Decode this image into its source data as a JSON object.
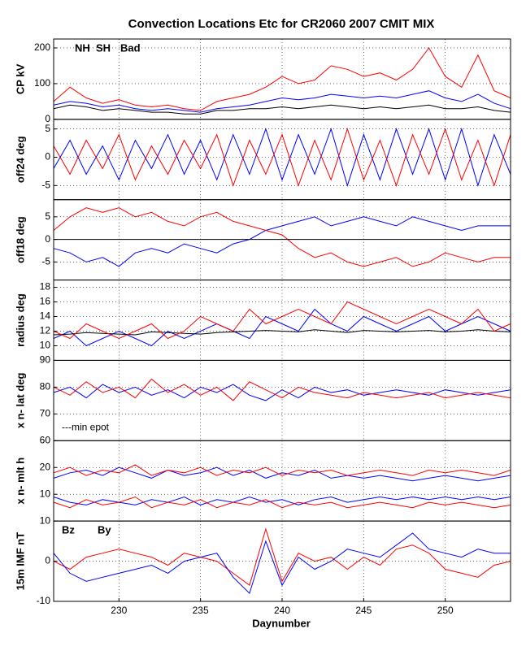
{
  "chart_data": {
    "type": "line",
    "title": "Convection Locations Etc for CR2060 2007 CMIT MIX",
    "xlabel": "Daynumber",
    "x": [
      226,
      227,
      228,
      229,
      230,
      231,
      232,
      233,
      234,
      235,
      236,
      237,
      238,
      239,
      240,
      241,
      242,
      243,
      244,
      245,
      246,
      247,
      248,
      249,
      250,
      251,
      252,
      253,
      254
    ],
    "xlim": [
      226,
      254
    ],
    "xticks": [
      230,
      235,
      240,
      245,
      250
    ],
    "grid": true,
    "panels": [
      {
        "ylabel": "CP kV",
        "ylim": [
          0,
          225
        ],
        "yticks": [
          0,
          100,
          200
        ],
        "series": [
          {
            "name": "NH",
            "color": "#ff0000",
            "values": [
              50,
              90,
              60,
              45,
              55,
              40,
              35,
              40,
              30,
              25,
              50,
              60,
              70,
              90,
              120,
              100,
              110,
              150,
              140,
              120,
              130,
              110,
              140,
              200,
              120,
              90,
              180,
              80,
              60
            ]
          },
          {
            "name": "SH",
            "color": "#0000ff",
            "values": [
              40,
              50,
              45,
              35,
              40,
              30,
              25,
              30,
              25,
              20,
              30,
              35,
              40,
              50,
              60,
              55,
              60,
              70,
              65,
              60,
              65,
              60,
              70,
              80,
              60,
              50,
              70,
              45,
              30
            ]
          },
          {
            "name": "Bad",
            "color": "#000000",
            "values": [
              30,
              40,
              35,
              25,
              30,
              25,
              20,
              20,
              15,
              15,
              25,
              25,
              30,
              30,
              35,
              30,
              35,
              40,
              35,
              30,
              35,
              30,
              35,
              40,
              30,
              30,
              35,
              25,
              20
            ]
          }
        ]
      },
      {
        "ylabel": "off24 deg",
        "ylim": [
          -7.5,
          6.7
        ],
        "yticks": [
          -5,
          0,
          5
        ],
        "series": [
          {
            "color": "#0000ff",
            "values": [
              -2,
              3,
              -3,
              2,
              -4,
              3,
              -2,
              4,
              -3,
              3,
              -4,
              4,
              -3,
              5,
              -4,
              4,
              -3,
              5,
              -5,
              4,
              -4,
              5,
              -3,
              5,
              -4,
              5,
              -5,
              4,
              -3
            ]
          },
          {
            "color": "#ff0000",
            "values": [
              2,
              -3,
              3,
              -2,
              4,
              -4,
              2,
              -3,
              3,
              -2,
              4,
              -5,
              3,
              -3,
              4,
              -5,
              3,
              -4,
              5,
              -4,
              3,
              -5,
              4,
              -3,
              5,
              -4,
              3,
              -5,
              4
            ]
          }
        ]
      },
      {
        "ylabel": "off18 deg",
        "ylim": [
          -9,
          8.8
        ],
        "yticks": [
          -5,
          0,
          5
        ],
        "series": [
          {
            "color": "#0000ff",
            "values": [
              -2,
              -3,
              -5,
              -4,
              -6,
              -3,
              -2,
              -3,
              -1,
              -2,
              -3,
              -1,
              0,
              2,
              3,
              4,
              5,
              3,
              4,
              5,
              4,
              3,
              5,
              4,
              3,
              2,
              3,
              3,
              3
            ]
          },
          {
            "color": "#ff0000",
            "values": [
              2,
              5,
              7,
              6,
              7,
              5,
              6,
              4,
              3,
              5,
              6,
              4,
              3,
              2,
              1,
              -2,
              -4,
              -3,
              -5,
              -6,
              -5,
              -4,
              -6,
              -5,
              -3,
              -4,
              -5,
              -4,
              -4
            ]
          },
          {
            "color": "#000000",
            "values": [
              0,
              0,
              0,
              0,
              0,
              0,
              0,
              0,
              0,
              0,
              0,
              0,
              0,
              0,
              0,
              0,
              0,
              0,
              0,
              0,
              0,
              0,
              0,
              0,
              0,
              0,
              0,
              0,
              0
            ]
          }
        ]
      },
      {
        "ylabel": "radius deg",
        "ylim": [
          8,
          19
        ],
        "yticks": [
          10,
          12,
          14,
          16,
          18
        ],
        "series": [
          {
            "color": "#0000ff",
            "values": [
              11,
              12,
              10,
              11,
              12,
              11,
              10,
              12,
              11,
              12,
              13,
              12,
              11,
              14,
              13,
              12,
              15,
              13,
              12,
              14,
              13,
              12,
              13,
              14,
              12,
              13,
              14,
              13,
              12
            ]
          },
          {
            "color": "#000000",
            "values": [
              11.5,
              11.6,
              11.8,
              11.7,
              11.6,
              11.5,
              11.9,
              11.8,
              11.7,
              11.6,
              11.8,
              11.9,
              12,
              12.1,
              12,
              11.9,
              12.2,
              12,
              11.8,
              12.1,
              12,
              11.9,
              12,
              12.1,
              11.9,
              12,
              12.2,
              12,
              11.9
            ]
          },
          {
            "color": "#ff0000",
            "values": [
              12,
              11,
              13,
              12,
              11,
              12,
              13,
              11,
              12,
              14,
              13,
              12,
              15,
              13,
              14,
              15,
              14,
              13,
              16,
              15,
              14,
              13,
              14,
              15,
              14,
              13,
              15,
              12,
              13
            ]
          }
        ]
      },
      {
        "ylabel": "x n- lat deg",
        "ylim": [
          60,
          90
        ],
        "yticks": [
          60,
          70,
          80,
          90
        ],
        "annotation": "---min epot",
        "series": [
          {
            "color": "#0000ff",
            "values": [
              78,
              80,
              76,
              81,
              78,
              80,
              77,
              79,
              76,
              80,
              78,
              81,
              77,
              75,
              79,
              76,
              80,
              78,
              79,
              77,
              78,
              79,
              78,
              77,
              79,
              78,
              77,
              78,
              79
            ]
          },
          {
            "color": "#ff0000",
            "values": [
              80,
              77,
              82,
              78,
              80,
              76,
              83,
              78,
              81,
              77,
              80,
              75,
              82,
              79,
              76,
              80,
              78,
              77,
              76,
              78,
              77,
              76,
              77,
              78,
              76,
              77,
              78,
              77,
              76
            ]
          }
        ]
      },
      {
        "ylabel": "x n- mlt h",
        "ylim": [
          0,
          30
        ],
        "yticks": [
          10,
          20
        ],
        "series": [
          {
            "color": "#0000ff",
            "values": [
              16,
              18,
              19,
              17,
              20,
              18,
              16,
              19,
              17,
              18,
              20,
              17,
              19,
              16,
              18,
              17,
              19,
              16,
              17,
              16,
              17,
              16,
              15,
              16,
              17,
              16,
              15,
              16,
              17
            ]
          },
          {
            "color": "#ff0000",
            "values": [
              18,
              20,
              17,
              19,
              18,
              21,
              17,
              19,
              18,
              20,
              17,
              19,
              18,
              20,
              17,
              19,
              18,
              19,
              17,
              18,
              19,
              18,
              17,
              19,
              18,
              19,
              18,
              17,
              19
            ]
          },
          {
            "color": "#0000ff",
            "values": [
              9,
              7,
              6,
              8,
              7,
              6,
              8,
              7,
              9,
              6,
              8,
              7,
              9,
              7,
              8,
              6,
              8,
              9,
              7,
              8,
              9,
              8,
              9,
              8,
              9,
              8,
              9,
              8,
              9
            ]
          },
          {
            "color": "#ff0000",
            "values": [
              7,
              5,
              8,
              6,
              7,
              9,
              5,
              7,
              6,
              8,
              5,
              7,
              6,
              8,
              5,
              7,
              6,
              7,
              5,
              6,
              7,
              6,
              5,
              7,
              6,
              7,
              6,
              5,
              6
            ]
          }
        ]
      },
      {
        "ylabel": "15m IMF nT",
        "ylim": [
          -10,
          10
        ],
        "yticks": [
          -10,
          0,
          10
        ],
        "series": [
          {
            "name": "Bz",
            "color": "#ff0000",
            "values": [
              0,
              -2,
              1,
              2,
              3,
              2,
              1,
              -1,
              2,
              1,
              0,
              -3,
              -6,
              8,
              -5,
              2,
              0,
              1,
              -2,
              1,
              -1,
              3,
              4,
              2,
              -2,
              -3,
              -4,
              -1,
              0
            ]
          },
          {
            "name": "By",
            "color": "#0000ff",
            "values": [
              2,
              -3,
              -5,
              -4,
              -3,
              -2,
              -1,
              -3,
              0,
              1,
              2,
              -4,
              -8,
              5,
              -6,
              1,
              -2,
              0,
              3,
              2,
              1,
              4,
              7,
              3,
              2,
              1,
              3,
              2,
              2
            ]
          }
        ]
      }
    ]
  }
}
